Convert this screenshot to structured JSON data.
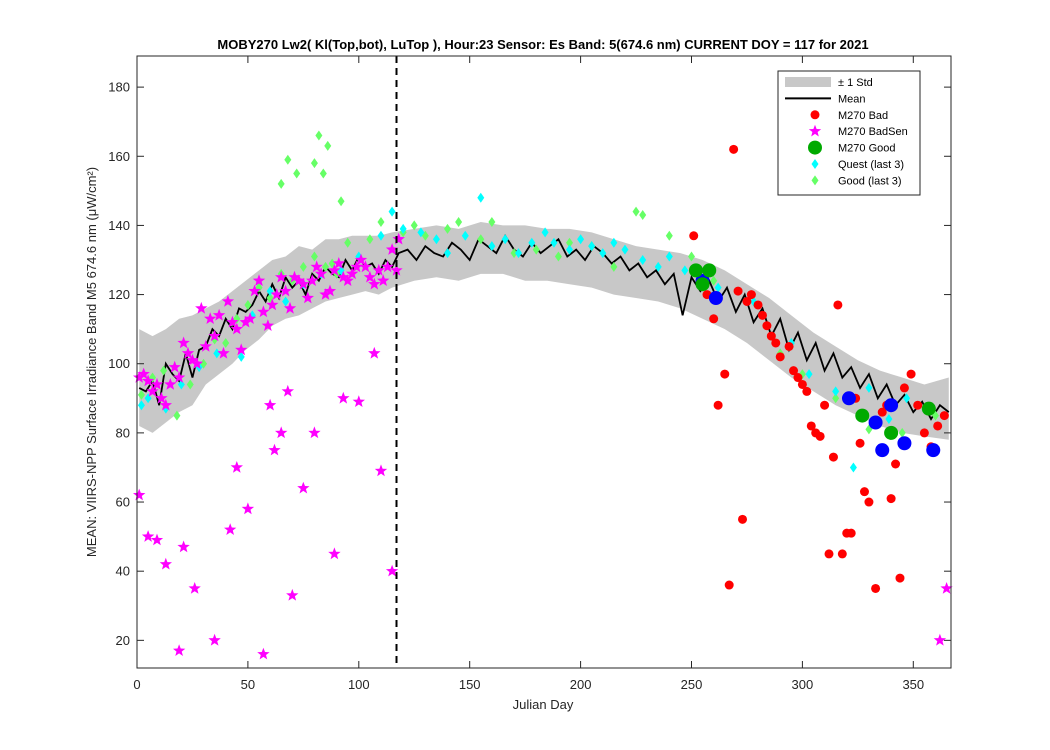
{
  "chart_data": {
    "type": "scatter",
    "title": "MOBY270   Lw2( Kl(Top,bot), LuTop ),   Hour:23 Sensor: Es Band: 5(674.6 nm)   CURRENT DOY = 117 for 2021",
    "xlabel": "Julian Day",
    "ylabel": "MEAN: VIIRS-NPP Surface Irradiance Band M5 674.6 nm (μW/cm²)",
    "xlim": [
      0,
      367
    ],
    "ylim": [
      12,
      189
    ],
    "x_ticks": [
      0,
      50,
      100,
      150,
      200,
      250,
      300,
      350
    ],
    "y_ticks": [
      20,
      40,
      60,
      80,
      100,
      120,
      140,
      160,
      180
    ],
    "grid": false,
    "legend_position": "top-right",
    "current_doy": 117,
    "colors": {
      "std_band": "#c8c8c8",
      "mean": "#000000",
      "bad": "#ff0000",
      "badsen": "#ff00ff",
      "good": "#00aa00",
      "quest": "#00ffff",
      "good_last3": "#66ff66",
      "quest_large": "#0000ff"
    },
    "legend": [
      {
        "label": "± 1 Std",
        "marker": "band"
      },
      {
        "label": "Mean",
        "marker": "line"
      },
      {
        "label": "M270 Bad",
        "marker": "circle"
      },
      {
        "label": "M270 BadSen",
        "marker": "star"
      },
      {
        "label": "M270 Good",
        "marker": "bigcircle"
      },
      {
        "label": "Quest (last 3)",
        "marker": "diamond"
      },
      {
        "label": "Good (last 3)",
        "marker": "diamond"
      }
    ],
    "series": [
      {
        "name": "Mean",
        "x": [
          1,
          4,
          7,
          10,
          13,
          16,
          19,
          22,
          25,
          28,
          31,
          34,
          37,
          40,
          43,
          46,
          49,
          52,
          55,
          58,
          61,
          64,
          67,
          70,
          73,
          76,
          79,
          82,
          85,
          88,
          91,
          94,
          97,
          100,
          103,
          106,
          109,
          112,
          115,
          118,
          122,
          126,
          130,
          134,
          138,
          142,
          146,
          150,
          154,
          158,
          162,
          166,
          170,
          174,
          178,
          182,
          186,
          190,
          194,
          198,
          202,
          206,
          210,
          214,
          218,
          222,
          226,
          230,
          234,
          238,
          242,
          246,
          250,
          254,
          258,
          262,
          266,
          270,
          274,
          278,
          282,
          286,
          290,
          294,
          298,
          302,
          306,
          310,
          314,
          318,
          322,
          326,
          330,
          334,
          338,
          342,
          346,
          350,
          354,
          358,
          362,
          366
        ],
        "values": [
          93,
          92,
          95,
          88,
          100,
          97,
          95,
          103,
          96,
          104,
          105,
          110,
          108,
          113,
          110,
          116,
          115,
          117,
          121,
          118,
          123,
          119,
          125,
          122,
          124,
          120,
          126,
          124,
          128,
          126,
          125,
          130,
          127,
          131,
          128,
          129,
          126,
          130,
          128,
          132,
          133,
          130,
          134,
          132,
          131,
          135,
          133,
          130,
          136,
          134,
          132,
          137,
          133,
          131,
          135,
          132,
          134,
          136,
          131,
          133,
          130,
          134,
          132,
          129,
          131,
          127,
          129,
          125,
          127,
          123,
          126,
          114,
          125,
          121,
          124,
          118,
          122,
          115,
          120,
          112,
          116,
          108,
          113,
          104,
          109,
          101,
          106,
          98,
          103,
          96,
          99,
          93,
          97,
          90,
          94,
          88,
          91,
          86,
          89,
          84,
          88,
          86
        ]
      },
      {
        "name": "Std band",
        "x": [
          1,
          7,
          13,
          19,
          25,
          31,
          37,
          43,
          49,
          55,
          61,
          67,
          73,
          79,
          85,
          91,
          97,
          103,
          109,
          115,
          125,
          135,
          145,
          155,
          165,
          175,
          185,
          195,
          205,
          215,
          225,
          235,
          245,
          255,
          265,
          275,
          285,
          295,
          305,
          315,
          325,
          335,
          345,
          355,
          366
        ],
        "upper": [
          110,
          108,
          110,
          113,
          114,
          116,
          118,
          121,
          124,
          127,
          130,
          131,
          134,
          133,
          136,
          136,
          137,
          137,
          137,
          138,
          139,
          140,
          139,
          141,
          140,
          140,
          139,
          139,
          138,
          136,
          134,
          133,
          132,
          130,
          127,
          123,
          119,
          114,
          109,
          105,
          101,
          98,
          96,
          94,
          96
        ],
        "lower": [
          82,
          80,
          83,
          86,
          88,
          94,
          97,
          100,
          104,
          107,
          111,
          113,
          114,
          116,
          118,
          119,
          120,
          121,
          120,
          122,
          124,
          125,
          124,
          126,
          126,
          124,
          124,
          123,
          122,
          120,
          119,
          118,
          116,
          113,
          110,
          106,
          101,
          96,
          92,
          88,
          85,
          82,
          80,
          79,
          78
        ]
      },
      {
        "name": "M270 Bad",
        "x": [
          251,
          254,
          257,
          260,
          262,
          265,
          267,
          269,
          271,
          273,
          275,
          277,
          280,
          282,
          284,
          286,
          288,
          290,
          294,
          296,
          298,
          300,
          302,
          304,
          306,
          308,
          310,
          312,
          314,
          316,
          318,
          320,
          322,
          324,
          326,
          328,
          330,
          333,
          336,
          338,
          340,
          342,
          344,
          346,
          349,
          352,
          355,
          358,
          361,
          364
        ],
        "values": [
          137,
          124,
          120,
          113,
          88,
          97,
          36,
          162,
          121,
          55,
          118,
          120,
          117,
          114,
          111,
          108,
          106,
          102,
          105,
          98,
          96,
          94,
          92,
          82,
          80,
          79,
          88,
          45,
          73,
          117,
          45,
          51,
          51,
          90,
          77,
          63,
          60,
          35,
          86,
          88,
          61,
          71,
          38,
          93,
          97,
          88,
          80,
          76,
          82,
          85
        ]
      },
      {
        "name": "M270 BadSen",
        "x": [
          1,
          3,
          5,
          7,
          9,
          11,
          13,
          15,
          17,
          19,
          21,
          23,
          25,
          27,
          29,
          31,
          33,
          35,
          37,
          39,
          41,
          43,
          45,
          47,
          49,
          51,
          53,
          55,
          57,
          59,
          61,
          63,
          65,
          67,
          69,
          71,
          73,
          75,
          77,
          79,
          81,
          83,
          85,
          87,
          89,
          91,
          93,
          95,
          97,
          99,
          101,
          103,
          105,
          107,
          109,
          111,
          113,
          115,
          117,
          1,
          5,
          9,
          13,
          19,
          21,
          26,
          35,
          42,
          45,
          50,
          57,
          60,
          62,
          65,
          68,
          70,
          75,
          80,
          89,
          93,
          100,
          107,
          110,
          115,
          118,
          362,
          365
        ],
        "values": [
          96,
          97,
          95,
          92,
          94,
          90,
          88,
          94,
          99,
          96,
          106,
          103,
          101,
          100,
          116,
          105,
          113,
          108,
          114,
          103,
          118,
          112,
          110,
          104,
          112,
          113,
          121,
          124,
          115,
          111,
          117,
          120,
          125,
          121,
          116,
          125,
          124,
          123,
          119,
          124,
          128,
          126,
          120,
          121,
          127,
          129,
          125,
          124,
          126,
          128,
          130,
          128,
          125,
          123,
          127,
          124,
          128,
          133,
          127,
          62,
          50,
          49,
          42,
          17,
          47,
          35,
          20,
          52,
          70,
          58,
          16,
          88,
          75,
          80,
          92,
          33,
          64,
          80,
          45,
          90,
          89,
          103,
          69,
          40,
          136,
          20,
          35
        ]
      },
      {
        "name": "M270 Good",
        "x": [
          252,
          255,
          258,
          327,
          340,
          357
        ],
        "values": [
          127,
          123,
          127,
          85,
          80,
          87
        ]
      },
      {
        "name": "Quest (last 3)",
        "x": [
          2,
          5,
          13,
          20,
          28,
          36,
          47,
          52,
          60,
          67,
          75,
          83,
          92,
          100,
          110,
          115,
          120,
          128,
          135,
          140,
          148,
          155,
          160,
          166,
          172,
          178,
          184,
          188,
          195,
          200,
          205,
          210,
          215,
          220,
          228,
          235,
          240,
          247,
          255,
          262,
          278,
          295,
          303,
          315,
          323,
          330,
          339,
          347
        ],
        "values": [
          88,
          90,
          87,
          94,
          99,
          103,
          102,
          114,
          121,
          118,
          123,
          126,
          127,
          131,
          137,
          144,
          139,
          138,
          136,
          132,
          137,
          148,
          134,
          136,
          132,
          135,
          138,
          135,
          133,
          136,
          134,
          132,
          135,
          133,
          130,
          128,
          131,
          127,
          124,
          122,
          118,
          106,
          97,
          92,
          70,
          93,
          84,
          90
        ]
      },
      {
        "name": "Good (last 3)",
        "x": [
          2,
          7,
          12,
          18,
          24,
          30,
          35,
          40,
          45,
          50,
          55,
          60,
          65,
          70,
          75,
          80,
          85,
          88,
          90,
          95,
          105,
          110,
          120,
          125,
          130,
          140,
          145,
          155,
          160,
          170,
          180,
          190,
          195,
          205,
          215,
          225,
          228,
          240,
          250,
          260,
          290,
          300,
          315,
          330,
          345,
          360,
          65,
          68,
          72,
          80,
          82,
          84,
          86,
          92
        ],
        "values": [
          91,
          96,
          98,
          85,
          94,
          100,
          107,
          106,
          113,
          117,
          122,
          119,
          126,
          124,
          128,
          131,
          128,
          129,
          126,
          135,
          136,
          141,
          138,
          140,
          137,
          139,
          141,
          136,
          141,
          132,
          133,
          131,
          135,
          134,
          128,
          144,
          143,
          137,
          131,
          124,
          103,
          97,
          90,
          81,
          80,
          85,
          152,
          159,
          155,
          158,
          166,
          155,
          163,
          147
        ]
      },
      {
        "name": "Quest large",
        "x": [
          255,
          261,
          321,
          333,
          336,
          340,
          346,
          359
        ],
        "values": [
          124,
          119,
          90,
          83,
          75,
          88,
          77,
          75
        ]
      }
    ]
  }
}
